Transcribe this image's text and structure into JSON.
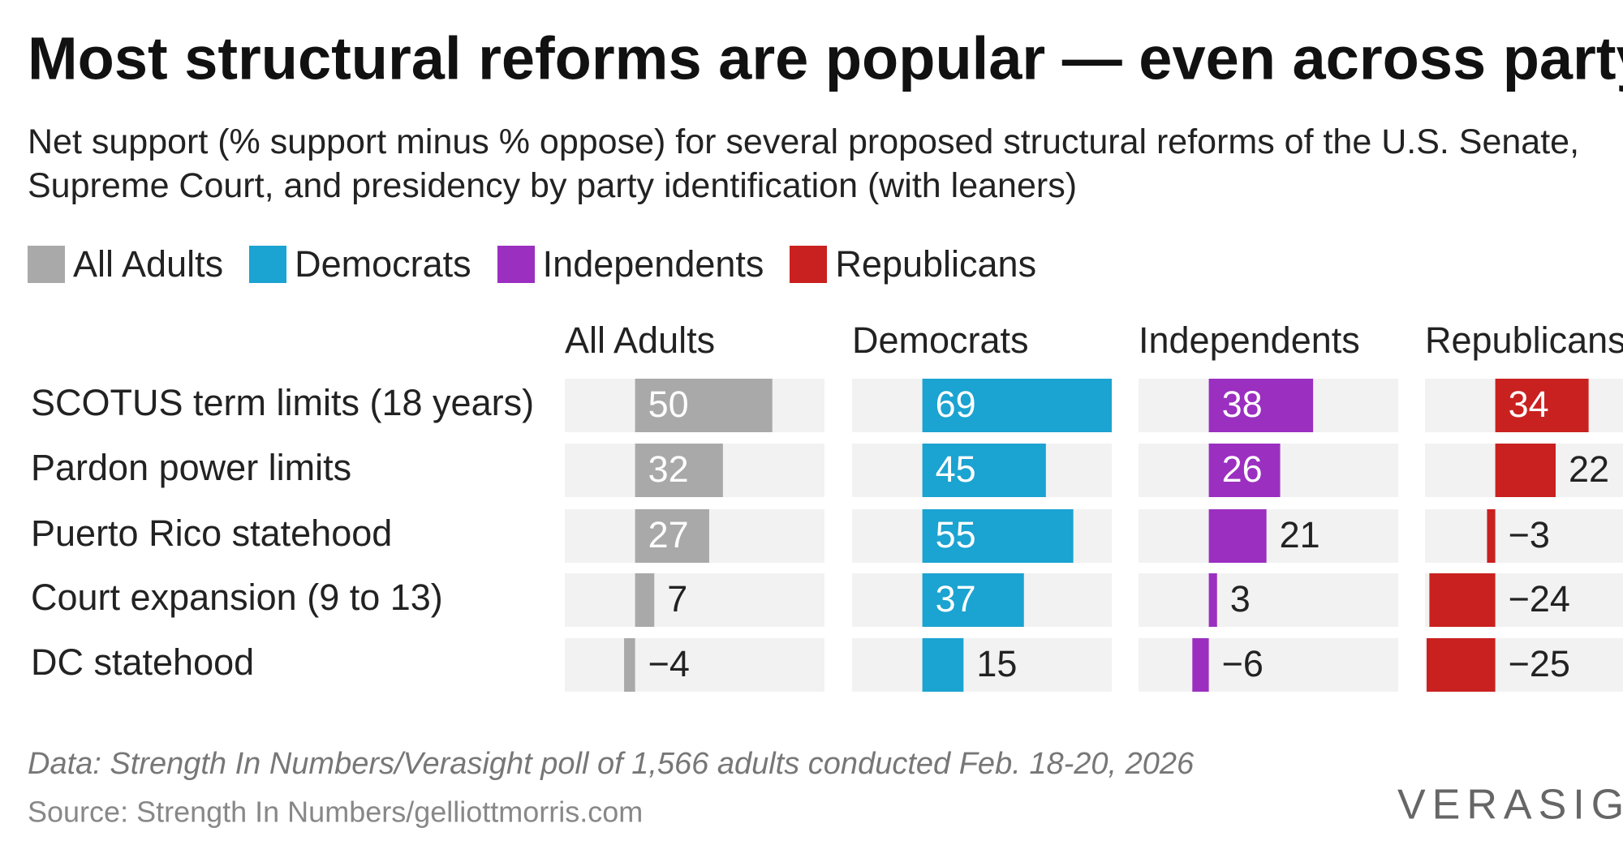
{
  "chart_data": {
    "type": "bar",
    "title": "Most structural reforms are popular — even across party lines",
    "subtitle": "Net support (% support minus % oppose) for several proposed structural reforms of the U.S. Senate, Supreme Court, and presidency by party identification (with leaners)",
    "categories": [
      "SCOTUS term limits (18 years)",
      "Pardon power limits",
      "Puerto Rico statehood",
      "Court expansion (9 to 13)",
      "DC statehood"
    ],
    "series": [
      {
        "name": "All Adults",
        "color": "#a9a9a9",
        "values": [
          50,
          32,
          27,
          7,
          -4
        ],
        "value_labels": [
          "50",
          "32",
          "27",
          "7",
          "−4"
        ]
      },
      {
        "name": "Democrats",
        "color": "#1ba3d1",
        "values": [
          69,
          45,
          55,
          37,
          15
        ],
        "value_labels": [
          "69",
          "45",
          "55",
          "37",
          "15"
        ]
      },
      {
        "name": "Independents",
        "color": "#9b2fc0",
        "values": [
          38,
          26,
          21,
          3,
          -6
        ],
        "value_labels": [
          "38",
          "26",
          "21",
          "3",
          "−6"
        ]
      },
      {
        "name": "Republicans",
        "color": "#c9211f",
        "values": [
          34,
          22,
          -3,
          -24,
          -25
        ],
        "value_labels": [
          "34",
          "22",
          "−3",
          "−24",
          "−25"
        ]
      }
    ],
    "xlim": [
      -25.6,
      69
    ],
    "note": "Data: Strength In Numbers/Verasight poll of 1,566 adults conducted Feb. 18-20, 2026",
    "source": "Source: Strength In Numbers/gelliottmorris.com",
    "logo": "VERASIGHT"
  }
}
